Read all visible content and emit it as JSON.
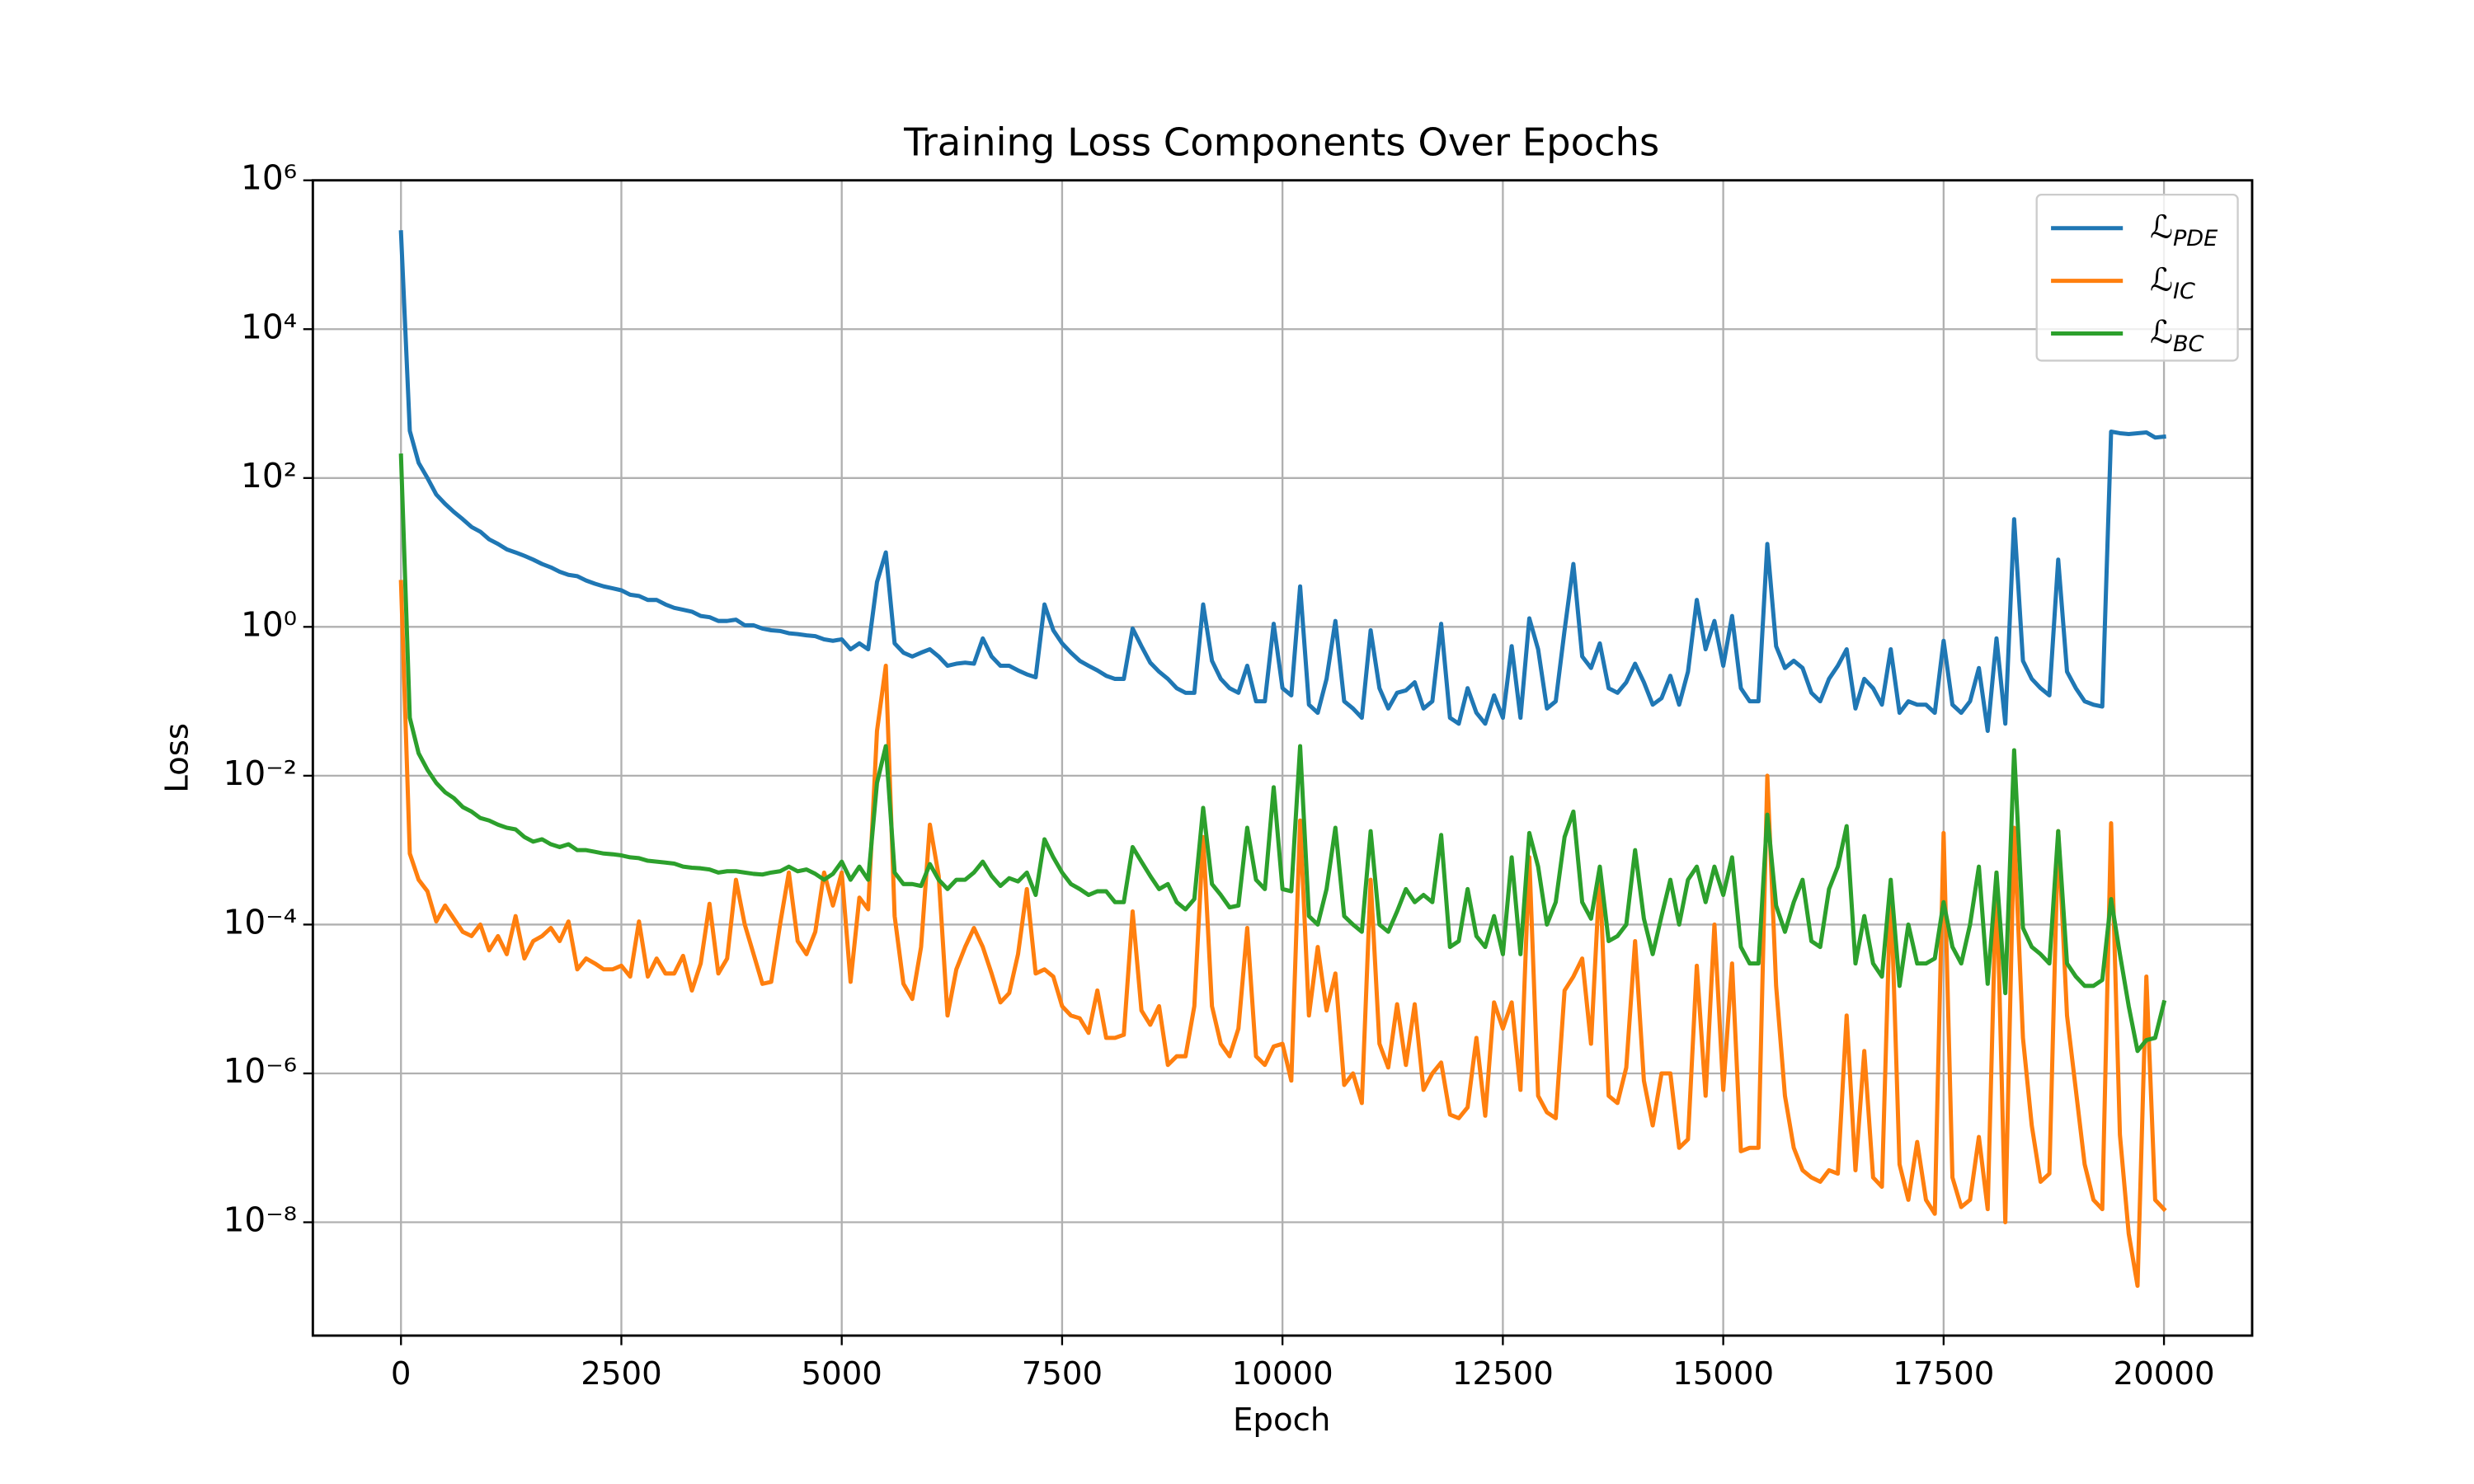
{
  "chart_data": {
    "type": "line",
    "title": "Training Loss Components Over Epochs",
    "x_label": "Epoch",
    "y_label": "Loss",
    "log_y": true,
    "grid": true,
    "legend": "upper right",
    "xlim": [
      -1000,
      21000
    ],
    "ylim": [
      3e-10,
      1000000
    ],
    "xticks": [
      0,
      2500,
      5000,
      7500,
      10000,
      12500,
      15000,
      17500,
      20000
    ],
    "yticks": [
      {
        "value": 1e-08,
        "label": "10⁻⁸"
      },
      {
        "value": 1e-06,
        "label": "10⁻⁶"
      },
      {
        "value": 0.0001,
        "label": "10⁻⁴"
      },
      {
        "value": 0.01,
        "label": "10⁻²"
      },
      {
        "value": 1,
        "label": "10⁰"
      },
      {
        "value": 100,
        "label": "10²"
      },
      {
        "value": 10000,
        "label": "10⁴"
      },
      {
        "value": 1000000,
        "label": "10⁶"
      }
    ],
    "x": [
      0,
      100,
      200,
      300,
      400,
      500,
      600,
      700,
      800,
      900,
      1000,
      1100,
      1200,
      1300,
      1400,
      1500,
      1600,
      1700,
      1800,
      1900,
      2000,
      2100,
      2200,
      2300,
      2400,
      2500,
      2600,
      2700,
      2800,
      2900,
      3000,
      3100,
      3200,
      3300,
      3400,
      3500,
      3600,
      3700,
      3800,
      3900,
      4000,
      4100,
      4200,
      4300,
      4400,
      4500,
      4600,
      4700,
      4800,
      4900,
      5000,
      5100,
      5200,
      5300,
      5400,
      5500,
      5600,
      5700,
      5800,
      5900,
      6000,
      6100,
      6200,
      6300,
      6400,
      6500,
      6600,
      6700,
      6800,
      6900,
      7000,
      7100,
      7200,
      7300,
      7400,
      7500,
      7600,
      7700,
      7800,
      7900,
      8000,
      8100,
      8200,
      8300,
      8400,
      8500,
      8600,
      8700,
      8800,
      8900,
      9000,
      9100,
      9200,
      9300,
      9400,
      9500,
      9600,
      9700,
      9800,
      9900,
      10000,
      10100,
      10200,
      10300,
      10400,
      10500,
      10600,
      10700,
      10800,
      10900,
      11000,
      11100,
      11200,
      11300,
      11400,
      11500,
      11600,
      11700,
      11800,
      11900,
      12000,
      12100,
      12200,
      12300,
      12400,
      12500,
      12600,
      12700,
      12800,
      12900,
      13000,
      13100,
      13200,
      13300,
      13400,
      13500,
      13600,
      13700,
      13800,
      13900,
      14000,
      14100,
      14200,
      14300,
      14400,
      14500,
      14600,
      14700,
      14800,
      14900,
      15000,
      15100,
      15200,
      15300,
      15400,
      15500,
      15600,
      15700,
      15800,
      15900,
      16000,
      16100,
      16200,
      16300,
      16400,
      16500,
      16600,
      16700,
      16800,
      16900,
      17000,
      17100,
      17200,
      17300,
      17400,
      17500,
      17600,
      17700,
      17800,
      17900,
      18000,
      18100,
      18200,
      18300,
      18400,
      18500,
      18600,
      18700,
      18800,
      18900,
      19000,
      19100,
      19200,
      19300,
      19400,
      19500,
      19600,
      19700,
      19800,
      19900,
      20000
    ],
    "series": [
      {
        "name": "ℒ_PDE",
        "color": "#1f77b4",
        "values": [
          200000.0,
          430,
          160,
          100,
          60,
          45,
          35,
          28,
          22,
          19,
          15,
          13,
          11,
          10,
          9,
          8,
          7,
          6.3,
          5.5,
          5,
          4.8,
          4.2,
          3.8,
          3.5,
          3.3,
          3.1,
          2.7,
          2.6,
          2.3,
          2.3,
          2,
          1.8,
          1.7,
          1.6,
          1.4,
          1.35,
          1.2,
          1.2,
          1.25,
          1.05,
          1.05,
          0.95,
          0.9,
          0.88,
          0.82,
          0.8,
          0.77,
          0.75,
          0.68,
          0.65,
          0.68,
          0.5,
          0.6,
          0.5,
          4,
          10,
          0.6,
          0.45,
          0.4,
          0.45,
          0.5,
          0.4,
          0.3,
          0.32,
          0.33,
          0.32,
          0.7,
          0.4,
          0.3,
          0.3,
          0.26,
          0.23,
          0.21,
          2,
          0.9,
          0.6,
          0.45,
          0.35,
          0.3,
          0.26,
          0.22,
          0.2,
          0.2,
          0.95,
          0.55,
          0.33,
          0.25,
          0.2,
          0.15,
          0.13,
          0.13,
          2,
          0.35,
          0.2,
          0.15,
          0.13,
          0.3,
          0.1,
          0.1,
          1.1,
          0.15,
          0.12,
          3.5,
          0.09,
          0.07,
          0.2,
          1.2,
          0.1,
          0.08,
          0.06,
          0.9,
          0.15,
          0.08,
          0.13,
          0.14,
          0.18,
          0.08,
          0.1,
          1.1,
          0.06,
          0.05,
          0.15,
          0.07,
          0.05,
          0.12,
          0.06,
          0.55,
          0.06,
          1.3,
          0.5,
          0.08,
          0.1,
          0.9,
          7,
          0.4,
          0.28,
          0.6,
          0.15,
          0.13,
          0.18,
          0.32,
          0.18,
          0.09,
          0.11,
          0.22,
          0.09,
          0.25,
          2.3,
          0.5,
          1.2,
          0.3,
          1.4,
          0.15,
          0.1,
          0.1,
          13,
          0.55,
          0.28,
          0.35,
          0.28,
          0.13,
          0.1,
          0.2,
          0.3,
          0.5,
          0.08,
          0.2,
          0.15,
          0.09,
          0.5,
          0.07,
          0.1,
          0.09,
          0.09,
          0.07,
          0.65,
          0.09,
          0.07,
          0.1,
          0.28,
          0.04,
          0.7,
          0.05,
          28,
          0.35,
          0.2,
          0.15,
          0.12,
          8,
          0.25,
          0.15,
          0.1,
          0.09,
          0.085,
          420,
          400,
          390,
          400,
          410,
          350,
          360
        ]
      },
      {
        "name": "ℒ_IC",
        "color": "#ff7f0e",
        "values": [
          4,
          0.0009,
          0.0004,
          0.00028,
          0.00011,
          0.00018,
          0.00012,
          8e-05,
          7e-05,
          0.0001,
          4.5e-05,
          7e-05,
          4e-05,
          0.00013,
          3.5e-05,
          6e-05,
          7e-05,
          9e-05,
          6e-05,
          0.00011,
          2.5e-05,
          3.5e-05,
          3e-05,
          2.5e-05,
          2.5e-05,
          2.8e-05,
          2e-05,
          0.00011,
          2e-05,
          3.5e-05,
          2.2e-05,
          2.2e-05,
          3.8e-05,
          1.3e-05,
          3e-05,
          0.00019,
          2.2e-05,
          3.5e-05,
          0.0004,
          0.0001,
          4e-05,
          1.6e-05,
          1.7e-05,
          0.0001,
          0.0005,
          6e-05,
          4e-05,
          8e-05,
          0.0005,
          0.00018,
          0.0005,
          1.7e-05,
          0.00023,
          0.00016,
          0.04,
          0.3,
          0.00013,
          1.6e-05,
          1e-05,
          5e-05,
          0.0022,
          0.00045,
          6e-06,
          2.5e-05,
          5e-05,
          9e-05,
          5e-05,
          2.2e-05,
          9e-06,
          1.2e-05,
          4e-05,
          0.0003,
          2.2e-05,
          2.5e-05,
          2e-05,
          8e-06,
          6e-06,
          5.5e-06,
          3.5e-06,
          1.3e-05,
          3e-06,
          3e-06,
          3.3e-06,
          0.00015,
          7e-06,
          4.5e-06,
          8e-06,
          1.3e-06,
          1.7e-06,
          1.7e-06,
          8e-06,
          0.0015,
          8e-06,
          2.5e-06,
          1.7e-06,
          4e-06,
          9e-05,
          1.7e-06,
          1.3e-06,
          2.3e-06,
          2.5e-06,
          8e-07,
          0.0025,
          6e-06,
          5e-05,
          7e-06,
          2.2e-05,
          7e-07,
          1e-06,
          4e-07,
          0.0004,
          2.5e-06,
          1.2e-06,
          8.5e-06,
          1.3e-06,
          8.5e-06,
          6e-07,
          1e-06,
          1.4e-06,
          2.8e-07,
          2.5e-07,
          3.5e-07,
          3e-06,
          2.7e-07,
          9e-06,
          4e-06,
          9e-06,
          6e-07,
          0.0008,
          5e-07,
          3e-07,
          2.5e-07,
          1.3e-05,
          2e-05,
          3.5e-05,
          2.5e-06,
          0.0005,
          5e-07,
          4e-07,
          1.2e-06,
          6e-05,
          8e-07,
          2e-07,
          1e-06,
          1e-06,
          1e-07,
          1.3e-07,
          2.8e-05,
          5e-07,
          0.0001,
          6e-07,
          3e-05,
          9e-08,
          1e-07,
          1e-07,
          0.01,
          1.5e-05,
          5e-07,
          1e-07,
          5e-08,
          4e-08,
          3.5e-08,
          5e-08,
          4.5e-08,
          6e-06,
          5e-08,
          2e-06,
          4e-08,
          3e-08,
          0.00035,
          6e-08,
          2e-08,
          1.2e-07,
          2e-08,
          1.3e-08,
          0.0017,
          4e-08,
          1.6e-08,
          2e-08,
          1.4e-07,
          1.5e-08,
          0.0005,
          1e-08,
          0.002,
          3e-06,
          2e-07,
          3.5e-08,
          4.5e-08,
          0.0018,
          6e-06,
          6e-07,
          6e-08,
          2e-08,
          1.5e-08,
          0.0023,
          1.5e-07,
          7e-09,
          1.4e-09,
          2e-05,
          2e-08,
          1.5e-08
        ]
      },
      {
        "name": "ℒ_BC",
        "color": "#2ca02c",
        "values": [
          200,
          0.06,
          0.02,
          0.012,
          0.008,
          0.006,
          0.005,
          0.0038,
          0.0033,
          0.0027,
          0.0025,
          0.0022,
          0.002,
          0.0019,
          0.0015,
          0.0013,
          0.0014,
          0.0012,
          0.0011,
          0.0012,
          0.001,
          0.001,
          0.00095,
          0.0009,
          0.00088,
          0.00085,
          0.0008,
          0.00078,
          0.00072,
          0.0007,
          0.00068,
          0.00066,
          0.0006,
          0.00058,
          0.00057,
          0.00055,
          0.0005,
          0.00052,
          0.00052,
          0.0005,
          0.00048,
          0.00047,
          0.0005,
          0.00052,
          0.0006,
          0.00052,
          0.00055,
          0.00048,
          0.0004,
          0.00048,
          0.0007,
          0.0004,
          0.0006,
          0.0004,
          0.008,
          0.025,
          0.0005,
          0.00035,
          0.00035,
          0.00033,
          0.00065,
          0.0004,
          0.0003,
          0.0004,
          0.0004,
          0.0005,
          0.0007,
          0.00045,
          0.00033,
          0.00042,
          0.00038,
          0.0005,
          0.00025,
          0.0014,
          0.0008,
          0.0005,
          0.00035,
          0.0003,
          0.00025,
          0.00028,
          0.00028,
          0.0002,
          0.0002,
          0.0011,
          0.0007,
          0.00045,
          0.0003,
          0.00035,
          0.0002,
          0.00016,
          0.00022,
          0.0037,
          0.00035,
          0.00025,
          0.00017,
          0.00018,
          0.002,
          0.0004,
          0.0003,
          0.007,
          0.0003,
          0.00028,
          0.025,
          0.00013,
          0.0001,
          0.0003,
          0.002,
          0.00013,
          0.0001,
          8e-05,
          0.0018,
          0.0001,
          8e-05,
          0.00015,
          0.0003,
          0.0002,
          0.00025,
          0.0002,
          0.0016,
          5e-05,
          6e-05,
          0.0003,
          7e-05,
          5e-05,
          0.00013,
          4e-05,
          0.0008,
          4e-05,
          0.0017,
          0.0006,
          0.0001,
          0.0002,
          0.0015,
          0.0033,
          0.0002,
          0.00012,
          0.0006,
          6e-05,
          7e-05,
          0.0001,
          0.001,
          0.00012,
          4e-05,
          0.00013,
          0.0004,
          0.0001,
          0.0004,
          0.0006,
          0.0002,
          0.0006,
          0.00025,
          0.0008,
          5e-05,
          3e-05,
          3e-05,
          0.003,
          0.00018,
          8e-05,
          0.0002,
          0.0004,
          6e-05,
          5e-05,
          0.0003,
          0.0006,
          0.0021,
          3e-05,
          0.00013,
          3e-05,
          2e-05,
          0.0004,
          1.5e-05,
          0.0001,
          3e-05,
          3e-05,
          3.5e-05,
          0.0002,
          5e-05,
          3e-05,
          0.0001,
          0.0006,
          1.6e-05,
          0.0005,
          1.2e-05,
          0.022,
          9e-05,
          5e-05,
          4e-05,
          3e-05,
          0.0018,
          3e-05,
          2e-05,
          1.5e-05,
          1.5e-05,
          1.8e-05,
          0.00022,
          4e-05,
          8e-06,
          2e-06,
          2.8e-06,
          3e-06,
          9e-06
        ]
      }
    ]
  }
}
